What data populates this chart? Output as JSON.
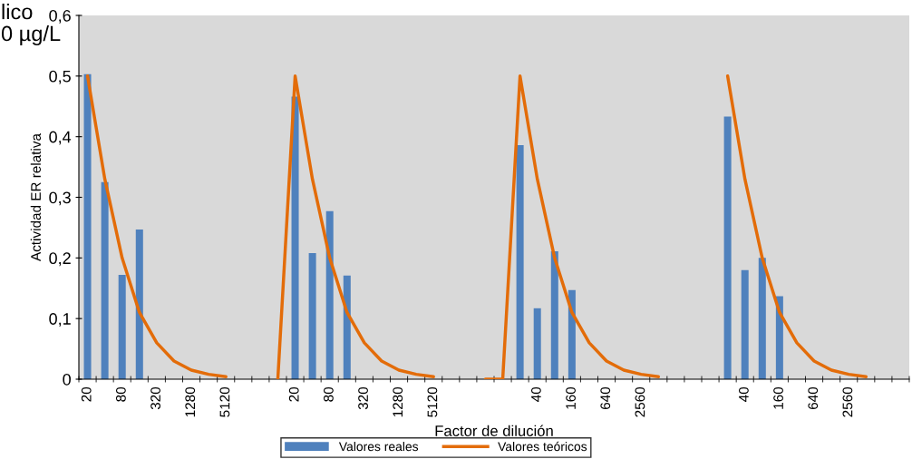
{
  "chart_data": {
    "type": "bar",
    "xlabel": "Factor de dilución",
    "ylabel": "Actividad ER relativa",
    "annotations": [
      "lico",
      "0 µg/L"
    ],
    "categories": [
      "20",
      null,
      "80",
      null,
      "320",
      null,
      "1280",
      null,
      "5120",
      null,
      null,
      null,
      "20",
      null,
      "80",
      null,
      "320",
      null,
      "1280",
      null,
      "5120",
      null,
      null,
      null,
      null,
      null,
      "40",
      null,
      "160",
      null,
      "640",
      null,
      "2560",
      null,
      null,
      null,
      null,
      null,
      "40",
      null,
      "160",
      null,
      "640",
      null,
      "2560",
      null,
      null,
      null
    ],
    "series": [
      {
        "name": "Valores reales",
        "color": "#4f81bd",
        "values": [
          0.503,
          0.325,
          0.172,
          0.247,
          null,
          null,
          null,
          null,
          null,
          null,
          null,
          null,
          0.466,
          0.208,
          0.277,
          0.171,
          null,
          null,
          null,
          null,
          null,
          null,
          null,
          null,
          null,
          0.386,
          0.117,
          0.211,
          0.147,
          null,
          null,
          null,
          null,
          null,
          null,
          null,
          null,
          0.433,
          0.18,
          0.2,
          0.137,
          null,
          null,
          null,
          null,
          null,
          null,
          null
        ]
      },
      {
        "name": "Valores teóricos",
        "type": "line",
        "color": "#e36c09",
        "values": [
          0.5,
          0.33,
          0.2,
          0.11,
          0.06,
          0.03,
          0.015,
          0.008,
          0.004,
          null,
          null,
          0,
          0.5,
          0.33,
          0.2,
          0.11,
          0.06,
          0.03,
          0.015,
          0.008,
          0.004,
          null,
          null,
          0,
          0,
          0.5,
          0.33,
          0.2,
          0.11,
          0.06,
          0.03,
          0.015,
          0.008,
          0.004,
          null,
          null,
          null,
          0.5,
          0.33,
          0.2,
          0.11,
          0.06,
          0.03,
          0.015,
          0.008,
          0.004,
          null,
          null
        ]
      }
    ],
    "ylim": [
      0,
      0.6
    ],
    "yticks": [
      0,
      {
        "value": 0.1,
        "label": "0,1"
      },
      {
        "value": 0.2,
        "label": "0,2"
      },
      {
        "value": 0.3,
        "label": "0,3"
      },
      {
        "value": 0.4,
        "label": "0,4"
      },
      {
        "value": 0.5,
        "label": "0,5"
      },
      {
        "value": 0.6,
        "label": "0,6"
      }
    ],
    "grid": false,
    "legend": "bottom",
    "marker": "none",
    "line_style": "solid"
  }
}
